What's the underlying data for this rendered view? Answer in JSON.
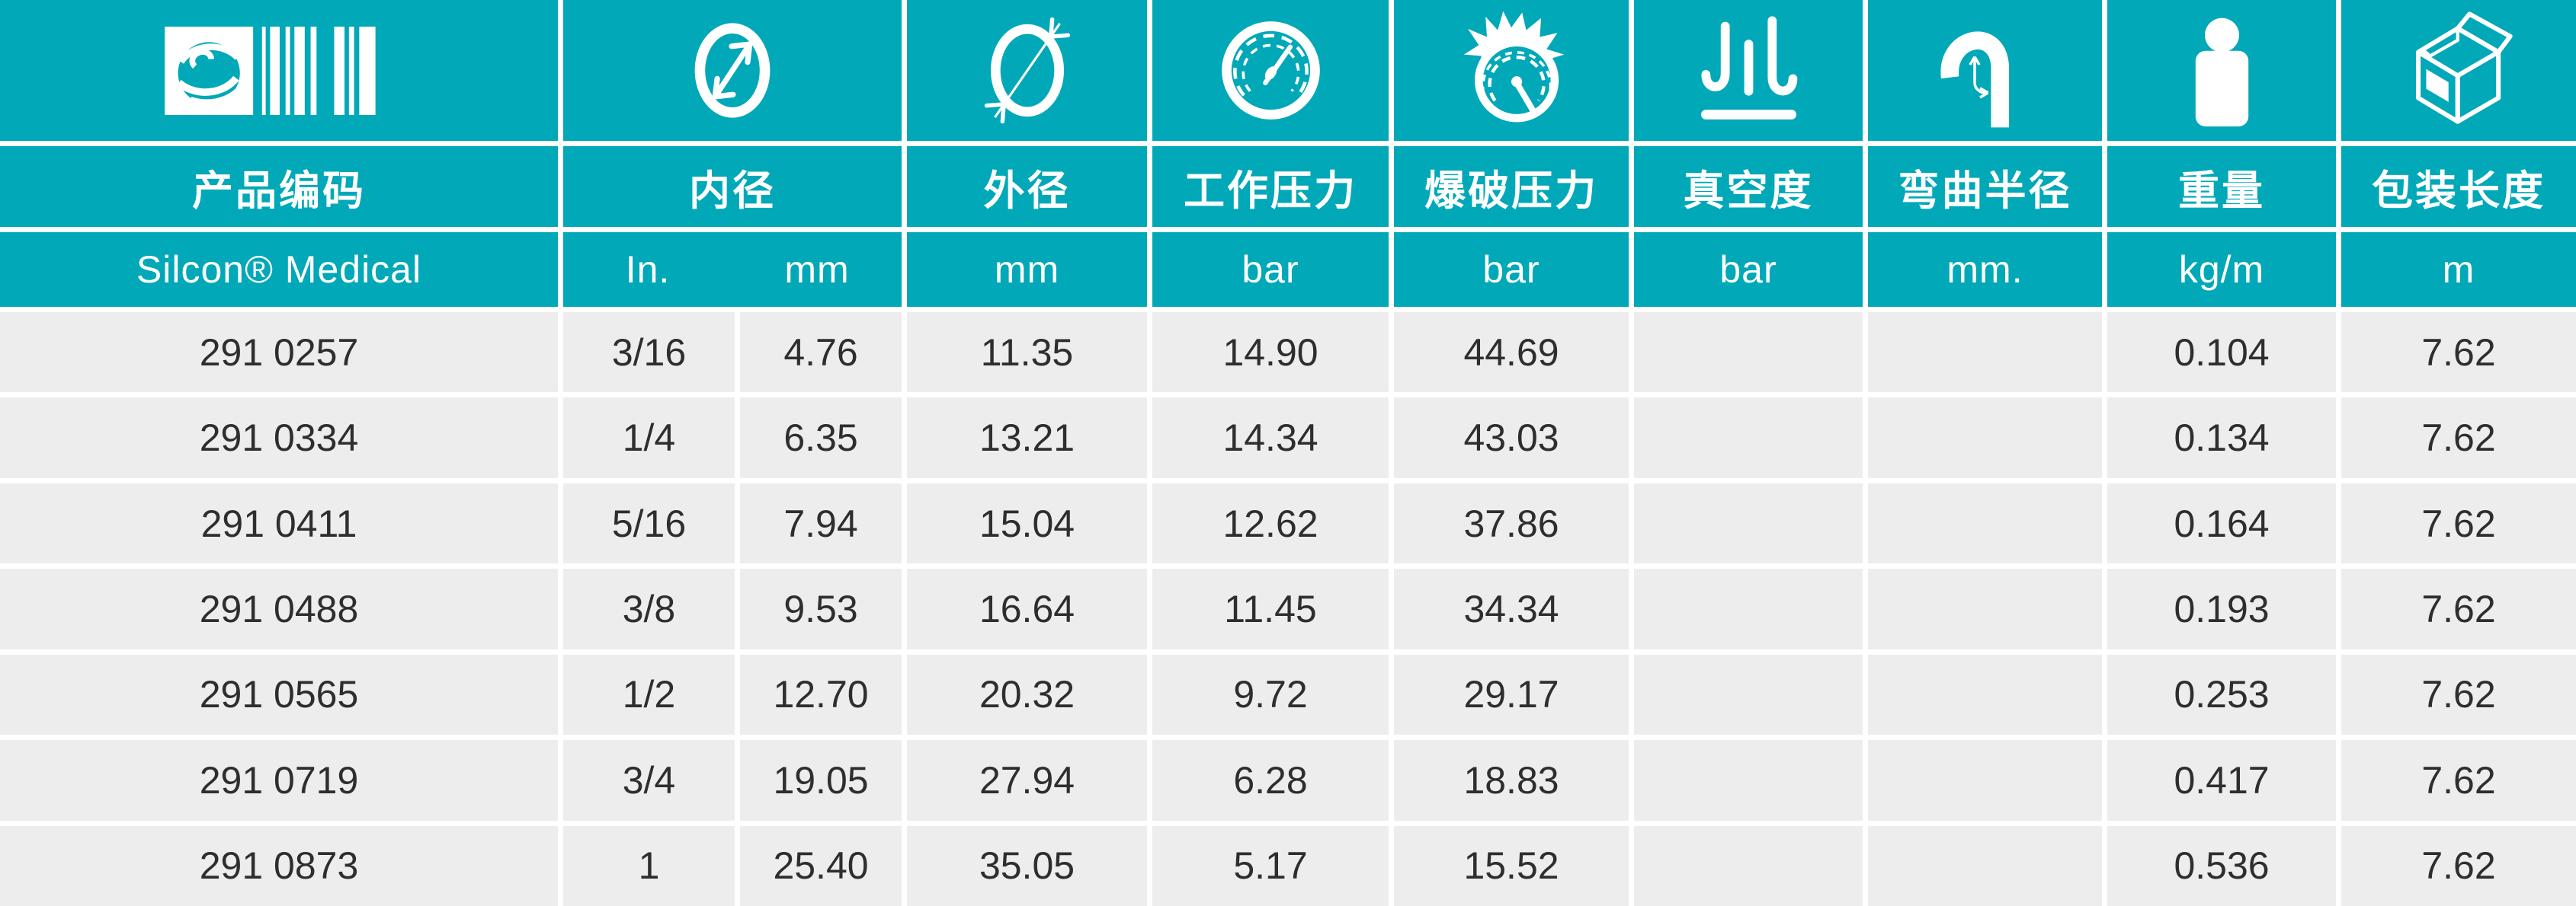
{
  "table": {
    "colors": {
      "teal": "#00A8B8",
      "row_gray": "#EDEDEE",
      "text_dark": "#2E2E2E",
      "white": "#FFFFFF"
    },
    "columns": [
      {
        "key": "code",
        "label": "产品编码",
        "unit": "Silcon® Medical",
        "icon": "logo-barcode-icon"
      },
      {
        "key": "id_in",
        "label": "内径",
        "unit": "In.",
        "icon": "inner-diameter-icon"
      },
      {
        "key": "id_mm",
        "label": "",
        "unit": "mm",
        "icon": ""
      },
      {
        "key": "od",
        "label": "外径",
        "unit": "mm",
        "icon": "outer-diameter-icon"
      },
      {
        "key": "wp",
        "label": "工作压力",
        "unit": "bar",
        "icon": "working-pressure-gauge-icon"
      },
      {
        "key": "bp",
        "label": "爆破压力",
        "unit": "bar",
        "icon": "burst-pressure-gauge-icon"
      },
      {
        "key": "vac",
        "label": "真空度",
        "unit": "bar",
        "icon": "vacuum-icon"
      },
      {
        "key": "br",
        "label": "弯曲半径",
        "unit": "mm.",
        "icon": "bend-radius-icon"
      },
      {
        "key": "wt",
        "label": "重量",
        "unit": "kg/m",
        "icon": "weight-icon"
      },
      {
        "key": "len",
        "label": "包装长度",
        "unit": "m",
        "icon": "package-box-icon"
      }
    ],
    "row_keys": [
      "code",
      "id_in",
      "id_mm",
      "od",
      "wp",
      "bp",
      "vac",
      "br",
      "wt",
      "len"
    ],
    "rows": [
      {
        "code": "291 0257",
        "id_in": "3/16",
        "id_mm": "4.76",
        "od": "11.35",
        "wp": "14.90",
        "bp": "44.69",
        "vac": "",
        "br": "",
        "wt": "0.104",
        "len": "7.62"
      },
      {
        "code": "291 0334",
        "id_in": "1/4",
        "id_mm": "6.35",
        "od": "13.21",
        "wp": "14.34",
        "bp": "43.03",
        "vac": "",
        "br": "",
        "wt": "0.134",
        "len": "7.62"
      },
      {
        "code": "291 0411",
        "id_in": "5/16",
        "id_mm": "7.94",
        "od": "15.04",
        "wp": "12.62",
        "bp": "37.86",
        "vac": "",
        "br": "",
        "wt": "0.164",
        "len": "7.62"
      },
      {
        "code": "291 0488",
        "id_in": "3/8",
        "id_mm": "9.53",
        "od": "16.64",
        "wp": "11.45",
        "bp": "34.34",
        "vac": "",
        "br": "",
        "wt": "0.193",
        "len": "7.62"
      },
      {
        "code": "291 0565",
        "id_in": "1/2",
        "id_mm": "12.70",
        "od": "20.32",
        "wp": "9.72",
        "bp": "29.17",
        "vac": "",
        "br": "",
        "wt": "0.253",
        "len": "7.62"
      },
      {
        "code": "291 0719",
        "id_in": "3/4",
        "id_mm": "19.05",
        "od": "27.94",
        "wp": "6.28",
        "bp": "18.83",
        "vac": "",
        "br": "",
        "wt": "0.417",
        "len": "7.62"
      },
      {
        "code": "291 0873",
        "id_in": "1",
        "id_mm": "25.40",
        "od": "35.05",
        "wp": "5.17",
        "bp": "15.52",
        "vac": "",
        "br": "",
        "wt": "0.536",
        "len": "7.62"
      }
    ]
  }
}
